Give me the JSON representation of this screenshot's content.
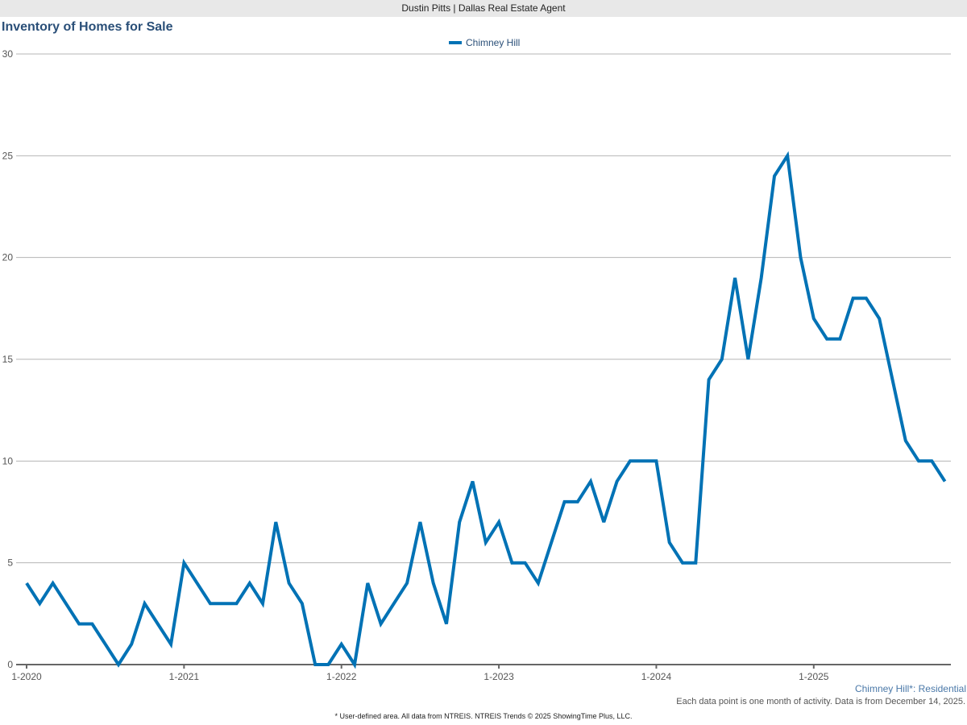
{
  "header": {
    "site": "Dustin Pitts | Dallas Real Estate Agent"
  },
  "chart_data": {
    "type": "line",
    "title": "Inventory of Homes for Sale",
    "xlabel": "",
    "ylabel": "",
    "ylim": [
      0,
      30
    ],
    "yticks": [
      0,
      5,
      10,
      15,
      20,
      25,
      30
    ],
    "xtick_labels": [
      "1-2020",
      "1-2021",
      "1-2022",
      "1-2023",
      "1-2024",
      "1-2025"
    ],
    "x_start": "2020-01",
    "x_end": "2025-11",
    "grid": true,
    "legend_position": "top-center",
    "series": [
      {
        "name": "Chimney Hill",
        "color": "#0072b5",
        "values": [
          4,
          3,
          4,
          3,
          2,
          2,
          1,
          0,
          1,
          3,
          2,
          1,
          5,
          4,
          3,
          3,
          3,
          4,
          3,
          7,
          4,
          3,
          0,
          0,
          1,
          0,
          4,
          2,
          3,
          4,
          7,
          4,
          2,
          7,
          9,
          6,
          7,
          5,
          5,
          4,
          6,
          8,
          8,
          9,
          7,
          9,
          10,
          10,
          10,
          6,
          5,
          5,
          14,
          15,
          19,
          15,
          19,
          24,
          25,
          20,
          17,
          16,
          16,
          18,
          18,
          17,
          14,
          11,
          10,
          10,
          9
        ]
      }
    ]
  },
  "annotations": {
    "area": "Chimney Hill*: Residential",
    "note": "Each data point is one month of activity. Data is from December 14, 2025.",
    "footer": "* User-defined area. All data from NTREIS. NTREIS Trends © 2025 ShowingTime Plus, LLC."
  }
}
